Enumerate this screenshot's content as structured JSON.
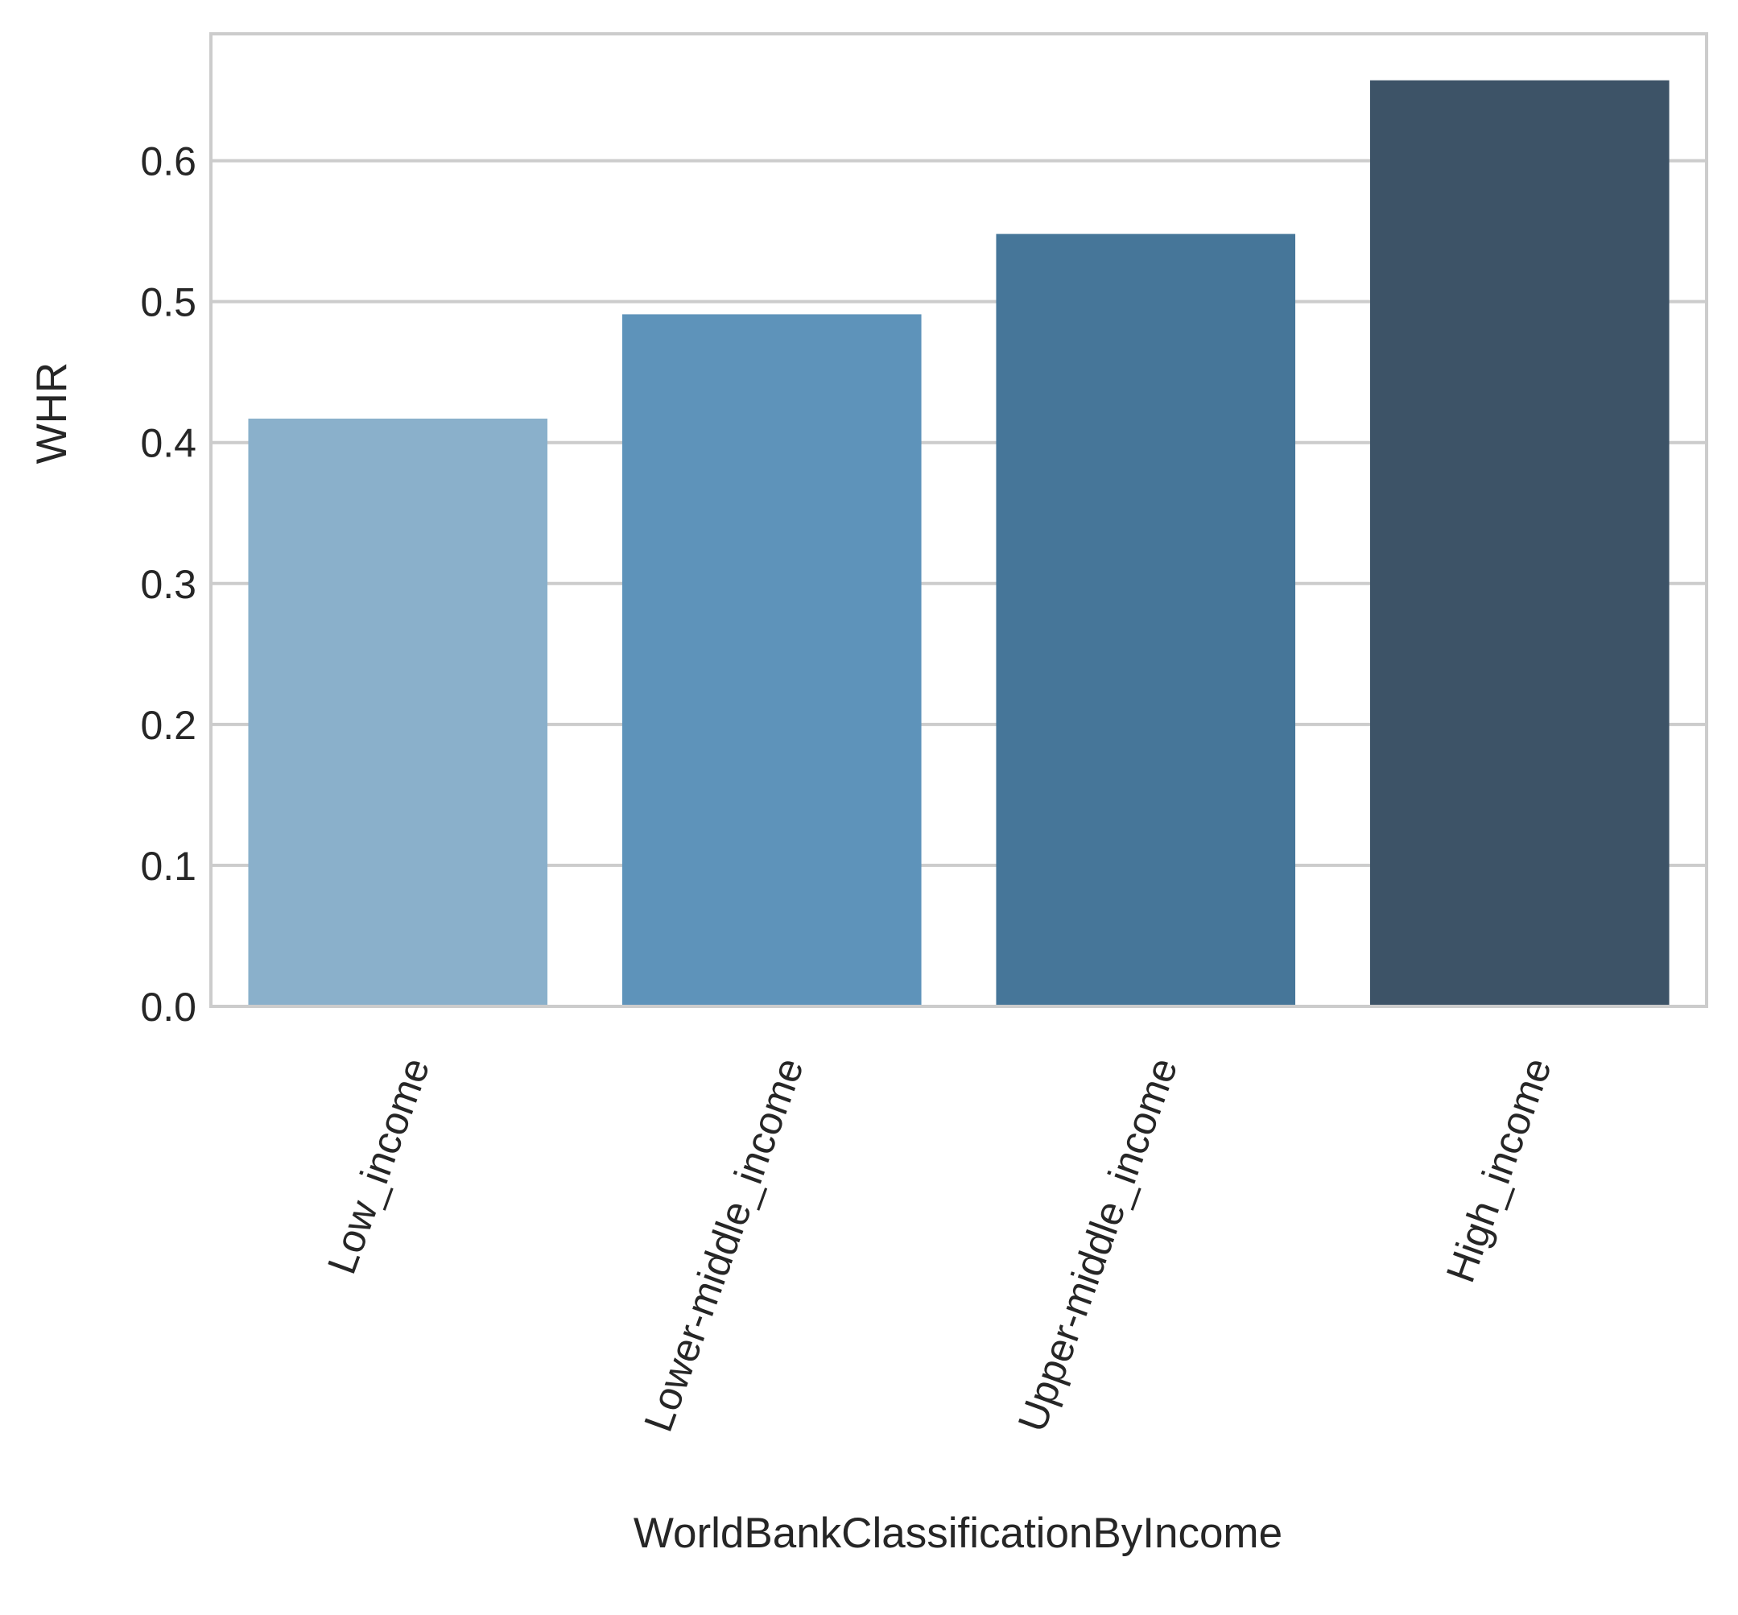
{
  "chart_data": {
    "type": "bar",
    "categories": [
      "Low_income",
      "Lower-middle_income",
      "Upper-middle_income",
      "High_income"
    ],
    "values": [
      0.417,
      0.491,
      0.548,
      0.657
    ],
    "xlabel": "WorldBankClassificationByIncome",
    "ylabel": "WHR",
    "ylim": [
      0,
      0.69
    ],
    "yticks": [
      "0.0",
      "0.1",
      "0.2",
      "0.3",
      "0.4",
      "0.5",
      "0.6"
    ],
    "grid": "horizontal",
    "colors": [
      "#8AB0CB",
      "#5E93BA",
      "#467699",
      "#3D5367"
    ],
    "grid_color": "#CCCCCC",
    "frame_color": "#CCCCCC"
  }
}
